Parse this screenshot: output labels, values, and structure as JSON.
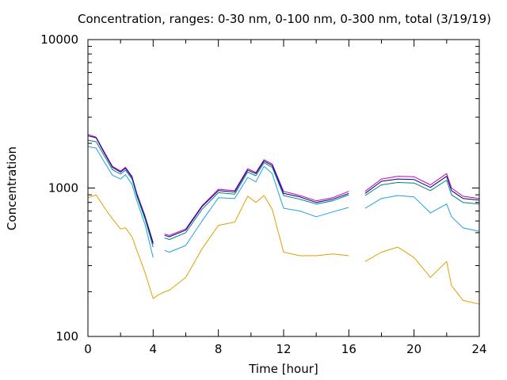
{
  "chart_data": {
    "type": "line",
    "title": "Concentration, ranges: 0-30 nm, 0-100 nm, 0-300 nm, total (3/19/19)",
    "xlabel": "Time [hour]",
    "ylabel": "Concentration",
    "xlim": [
      0,
      24
    ],
    "ylim": [
      100,
      10000
    ],
    "yscale": "log",
    "grid": false,
    "x_ticks": [
      "0",
      "4",
      "8",
      "12",
      "16",
      "20",
      "24"
    ],
    "y_ticks": [
      "100",
      "1000",
      "10000"
    ],
    "x": [
      0,
      0.5,
      1,
      1.5,
      2,
      2.3,
      2.7,
      3,
      3.5,
      4,
      4.3,
      4.7,
      5,
      6,
      7,
      8,
      9,
      9.8,
      10.3,
      10.8,
      11.3,
      12,
      13,
      14,
      15,
      16,
      16.3,
      17,
      18,
      19,
      20,
      21,
      22,
      22.3,
      23,
      24
    ],
    "series": [
      {
        "color": "#c000c0",
        "values": [
          2300,
          2200,
          1750,
          1400,
          1300,
          1380,
          1200,
          920,
          650,
          430,
          null,
          490,
          480,
          530,
          760,
          980,
          960,
          1350,
          1270,
          1550,
          1450,
          950,
          890,
          820,
          860,
          950,
          null,
          950,
          1150,
          1200,
          1190,
          1050,
          1250,
          1000,
          880,
          850
        ]
      },
      {
        "color": "#000080",
        "values": [
          2250,
          2180,
          1720,
          1380,
          1280,
          1360,
          1180,
          900,
          640,
          420,
          null,
          480,
          470,
          520,
          750,
          960,
          940,
          1320,
          1250,
          1520,
          1420,
          920,
          870,
          800,
          840,
          920,
          null,
          920,
          1110,
          1150,
          1140,
          1010,
          1200,
          960,
          850,
          830
        ]
      },
      {
        "color": "#008080",
        "values": [
          2100,
          2050,
          1650,
          1330,
          1240,
          1320,
          1150,
          880,
          620,
          400,
          null,
          460,
          450,
          500,
          720,
          930,
          910,
          1280,
          1210,
          1480,
          1380,
          890,
          840,
          780,
          820,
          900,
          null,
          890,
          1050,
          1090,
          1080,
          960,
          1130,
          900,
          800,
          780
        ]
      },
      {
        "color": "#20a0e0",
        "values": [
          1900,
          1860,
          1500,
          1220,
          1150,
          1230,
          1060,
          820,
          570,
          340,
          null,
          380,
          370,
          410,
          600,
          860,
          850,
          1180,
          1100,
          1400,
          1250,
          730,
          700,
          640,
          690,
          740,
          null,
          730,
          850,
          890,
          870,
          680,
          780,
          640,
          540,
          510
        ]
      },
      {
        "color": "#e0a000",
        "values": [
          860,
          900,
          740,
          620,
          530,
          540,
          470,
          380,
          270,
          180,
          190,
          200,
          205,
          250,
          390,
          560,
          590,
          880,
          800,
          890,
          720,
          370,
          350,
          350,
          360,
          350,
          null,
          320,
          370,
          400,
          340,
          250,
          320,
          220,
          175,
          165
        ]
      }
    ]
  }
}
